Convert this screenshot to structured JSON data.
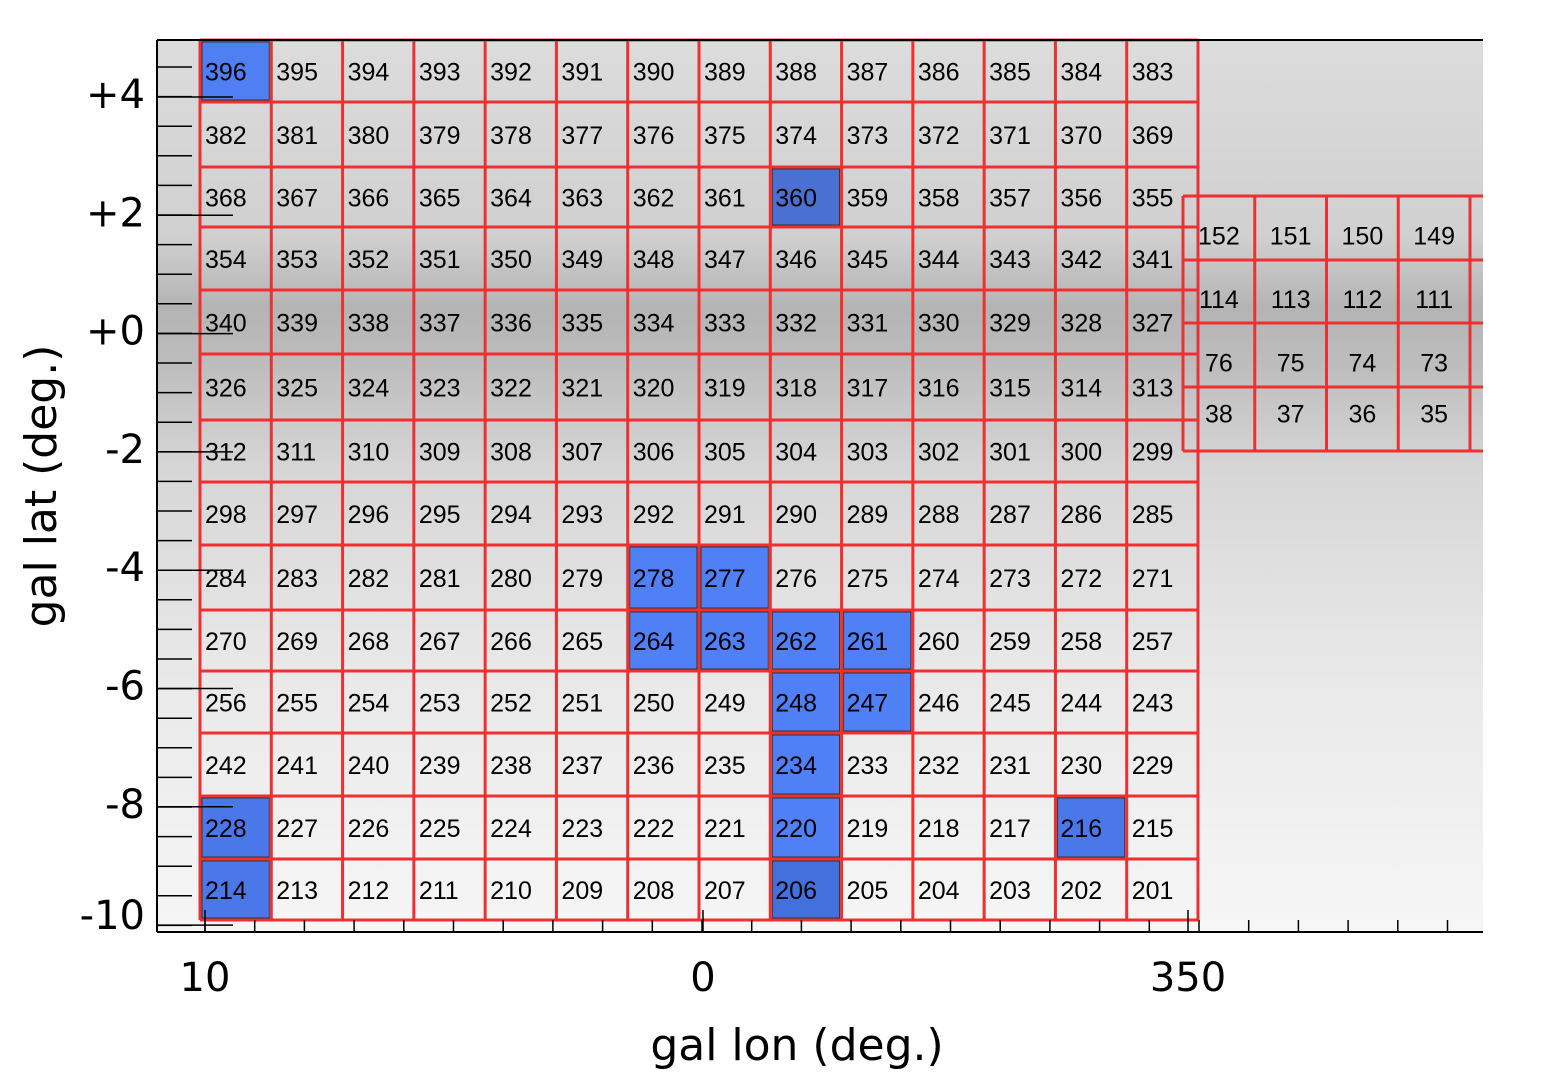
{
  "x_axis": {
    "label": "gal lon (deg.)",
    "ticks": [
      "10",
      "0",
      "350"
    ]
  },
  "y_axis": {
    "label": "gal lat (deg.)",
    "ticks": [
      "+4",
      "+2",
      "+0",
      "-2",
      "-4",
      "-6",
      "-8",
      "-10"
    ]
  },
  "main_grid": {
    "rows": [
      [
        {
          "label": 396,
          "color": "#4f7ff3"
        },
        395,
        394,
        393,
        392,
        391,
        390,
        389,
        388,
        387,
        386,
        385,
        384,
        383
      ],
      [
        382,
        381,
        380,
        379,
        378,
        377,
        376,
        375,
        374,
        373,
        372,
        371,
        370,
        369
      ],
      [
        368,
        367,
        366,
        365,
        364,
        363,
        362,
        361,
        {
          "label": 360,
          "color": "#4a70d2"
        },
        359,
        358,
        357,
        356,
        355
      ],
      [
        354,
        353,
        352,
        351,
        350,
        349,
        348,
        347,
        346,
        345,
        344,
        343,
        342,
        341
      ],
      [
        340,
        339,
        338,
        337,
        336,
        335,
        334,
        333,
        332,
        331,
        330,
        329,
        328,
        327
      ],
      [
        326,
        325,
        324,
        323,
        322,
        321,
        320,
        319,
        318,
        317,
        316,
        315,
        314,
        313
      ],
      [
        312,
        311,
        310,
        309,
        308,
        307,
        306,
        305,
        304,
        303,
        302,
        301,
        300,
        299
      ],
      [
        298,
        297,
        296,
        295,
        294,
        293,
        292,
        291,
        290,
        289,
        288,
        287,
        286,
        285
      ],
      [
        284,
        283,
        282,
        281,
        280,
        279,
        {
          "label": 278,
          "color": "#4f80f5"
        },
        {
          "label": 277,
          "color": "#4f80f5"
        },
        276,
        275,
        274,
        273,
        272,
        271
      ],
      [
        270,
        269,
        268,
        267,
        266,
        265,
        {
          "label": 264,
          "color": "#4f80f5"
        },
        {
          "label": 263,
          "color": "#4f80f5"
        },
        {
          "label": 262,
          "color": "#4f80f5"
        },
        {
          "label": 261,
          "color": "#4f80f5"
        },
        260,
        259,
        258,
        257
      ],
      [
        256,
        255,
        254,
        253,
        252,
        251,
        250,
        249,
        {
          "label": 248,
          "color": "#4f80f5"
        },
        {
          "label": 247,
          "color": "#4f80f5"
        },
        246,
        245,
        244,
        243
      ],
      [
        242,
        241,
        240,
        239,
        238,
        237,
        236,
        235,
        {
          "label": 234,
          "color": "#4f80f5"
        },
        233,
        232,
        231,
        230,
        229
      ],
      [
        {
          "label": 228,
          "color": "#4a78e8"
        },
        227,
        226,
        225,
        224,
        223,
        222,
        221,
        {
          "label": 220,
          "color": "#4f80f5"
        },
        219,
        218,
        217,
        {
          "label": 216,
          "color": "#4a78e8"
        },
        215
      ],
      [
        {
          "label": 214,
          "color": "#4a78e8"
        },
        213,
        212,
        211,
        210,
        209,
        208,
        207,
        {
          "label": 206,
          "color": "#4270dc"
        },
        205,
        204,
        203,
        202,
        201
      ]
    ]
  },
  "side_grid": {
    "rows": [
      [
        152,
        151,
        150,
        149
      ],
      [
        114,
        113,
        112,
        111
      ],
      [
        76,
        75,
        74,
        73
      ],
      [
        38,
        37,
        36,
        35
      ]
    ]
  }
}
